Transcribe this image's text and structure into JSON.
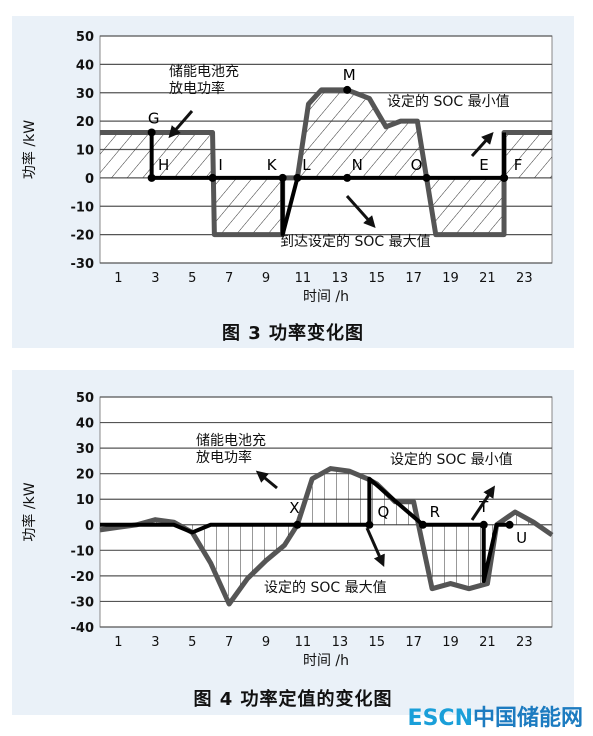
{
  "charts": [
    {
      "caption": "图 3   功率变化图",
      "xlabel": "时间 /h",
      "ylabel": "功率 /kW"
    },
    {
      "caption": "图 4   功率定值的变化图",
      "xlabel": "时间 /h",
      "ylabel": "功率 /kW"
    }
  ],
  "watermark": {
    "part1": "ESCN",
    "part2": "中国储能网"
  },
  "chart_data": [
    {
      "type": "line",
      "xlabel": "时间 /h",
      "ylabel": "功率 /kW",
      "xlim": [
        0,
        24.5
      ],
      "ylim": [
        -30,
        50
      ],
      "x_ticks": [
        1,
        3,
        5,
        7,
        9,
        11,
        13,
        15,
        17,
        19,
        21,
        23
      ],
      "y_ticks": [
        -30,
        -20,
        -10,
        0,
        10,
        20,
        30,
        40,
        50
      ],
      "grid": true,
      "series": [
        {
          "role": "power",
          "x": [
            0,
            2.8,
            2.8,
            6.1,
            6.2,
            8.5,
            9.9,
            9.9,
            10.7,
            11.3,
            12,
            13.4,
            14.6,
            15.5,
            16.3,
            17.2,
            17.7,
            18.2,
            19.5,
            21.3,
            21.9,
            21.9,
            24.5
          ],
          "y": [
            16,
            16,
            16,
            16,
            -20,
            -20,
            -20,
            0,
            0,
            26,
            31,
            31,
            28,
            18,
            20,
            20,
            0,
            -20,
            -20,
            -20,
            -20,
            16,
            16
          ]
        },
        {
          "role": "setting",
          "x": [
            2.8,
            2.8,
            6.1,
            9.9,
            9.9,
            10.7,
            17.7,
            21.9,
            21.9
          ],
          "y": [
            16,
            0,
            0,
            0,
            -20,
            0,
            0,
            0,
            16
          ]
        }
      ],
      "points": [
        {
          "label": "G",
          "x": 2.8,
          "y": 16
        },
        {
          "label": "H",
          "x": 2.8,
          "y": 0
        },
        {
          "label": "I",
          "x": 6.1,
          "y": 0
        },
        {
          "label": "K",
          "x": 9.9,
          "y": 0
        },
        {
          "label": "L",
          "x": 10.7,
          "y": 0
        },
        {
          "label": "M",
          "x": 13.4,
          "y": 31
        },
        {
          "label": "N",
          "x": 13.4,
          "y": 0
        },
        {
          "label": "O",
          "x": 17.7,
          "y": 0
        },
        {
          "label": "E",
          "x": 21.9,
          "y": 0
        },
        {
          "label": "F",
          "x": 21.9,
          "y": 0
        }
      ],
      "annotations": [
        {
          "text": "储能电池充\n放电功率"
        },
        {
          "text": "设定的 SOC 最小值"
        },
        {
          "text": "到达设定的 SOC 最大值"
        }
      ]
    },
    {
      "type": "line",
      "xlabel": "时间 /h",
      "ylabel": "功率 /kW",
      "xlim": [
        0,
        24.5
      ],
      "ylim": [
        -40,
        50
      ],
      "x_ticks": [
        1,
        3,
        5,
        7,
        9,
        11,
        13,
        15,
        17,
        19,
        21,
        23
      ],
      "y_ticks": [
        -40,
        -30,
        -20,
        -10,
        0,
        10,
        20,
        30,
        40,
        50
      ],
      "grid": true,
      "series": [
        {
          "role": "power",
          "x": [
            0,
            1,
            2,
            3,
            4,
            5,
            6,
            7,
            8,
            9,
            10,
            10.7,
            11.5,
            12.5,
            13.5,
            14.5,
            15,
            16,
            17,
            18,
            19,
            20,
            21,
            21.5,
            22.5,
            23.5,
            24.5
          ],
          "y": [
            -2,
            -1,
            0,
            2,
            1,
            -3,
            -15,
            -31,
            -21,
            -14,
            -8,
            0,
            18,
            22,
            21,
            18,
            16,
            9,
            9,
            -25,
            -23,
            -25,
            -23,
            0,
            5,
            1,
            -4
          ]
        },
        {
          "role": "setting",
          "x": [
            0,
            4,
            5,
            6,
            10.5,
            11,
            14.6,
            14.6,
            17.5,
            18,
            20.8,
            20.8,
            21.5,
            22.2
          ],
          "y": [
            0,
            0,
            -3,
            0,
            0,
            0,
            0,
            18,
            0,
            0,
            0,
            -22,
            0,
            0
          ]
        }
      ],
      "points": [
        {
          "label": "X",
          "x": 10.7,
          "y": 0
        },
        {
          "label": "Q",
          "x": 14.6,
          "y": 0
        },
        {
          "label": "R",
          "x": 17.5,
          "y": 0
        },
        {
          "label": "T",
          "x": 20.8,
          "y": 0
        },
        {
          "label": "U",
          "x": 22.2,
          "y": 0
        }
      ],
      "annotations": [
        {
          "text": "储能电池充\n放电功率"
        },
        {
          "text": "设定的 SOC 最小值"
        },
        {
          "text": "设定的 SOC 最大值"
        }
      ]
    }
  ]
}
